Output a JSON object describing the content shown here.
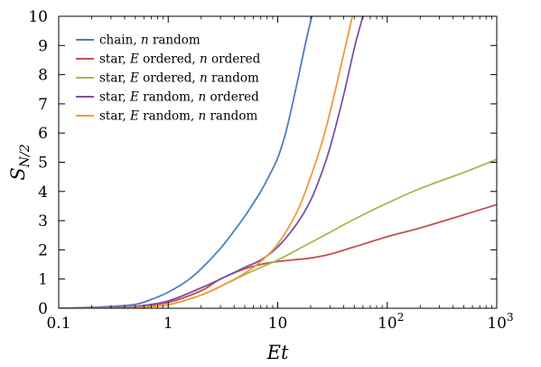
{
  "chart_data": {
    "type": "line",
    "xscale": "log",
    "xlabel": "Et",
    "ylabel": "S_{N/2}",
    "ylabel_main": "S",
    "ylabel_sub": "N/2",
    "xlim": [
      0.1,
      1000
    ],
    "ylim": [
      0,
      10
    ],
    "x_ticks": [
      {
        "value": 0.1,
        "label": "0.1"
      },
      {
        "value": 1,
        "label": "1"
      },
      {
        "value": 10,
        "label": "10"
      },
      {
        "value": 100,
        "label": "10",
        "exponent": "2"
      },
      {
        "value": 1000,
        "label": "10",
        "exponent": "3"
      }
    ],
    "y_ticks": [
      0,
      1,
      2,
      3,
      4,
      5,
      6,
      7,
      8,
      9,
      10
    ],
    "grid": false,
    "legend_position": "top-left",
    "series": [
      {
        "name": "chain, n random",
        "legend": [
          "chain, ",
          "n",
          " random"
        ],
        "color": "#4a7fc1",
        "x": [
          0.1,
          0.2,
          0.3,
          0.5,
          0.7,
          1,
          1.5,
          2,
          3,
          4,
          5,
          6,
          7,
          8,
          10,
          12,
          15,
          18,
          20.5
        ],
        "y": [
          0.0,
          0.03,
          0.06,
          0.13,
          0.3,
          0.55,
          0.95,
          1.35,
          2.05,
          2.65,
          3.15,
          3.6,
          4.0,
          4.4,
          5.15,
          6.1,
          7.7,
          9.1,
          10.0
        ]
      },
      {
        "name": "star, E ordered, n ordered",
        "legend": [
          "star, ",
          "E",
          " ordered, ",
          "n",
          " ordered"
        ],
        "color": "#c44f4f",
        "x": [
          0.1,
          0.3,
          0.5,
          1,
          2,
          3,
          5,
          7,
          10,
          15,
          20,
          30,
          50,
          100,
          200,
          500,
          1000
        ],
        "y": [
          0.0,
          0.02,
          0.05,
          0.2,
          0.6,
          1.0,
          1.35,
          1.5,
          1.6,
          1.67,
          1.72,
          1.85,
          2.1,
          2.45,
          2.75,
          3.2,
          3.55
        ]
      },
      {
        "name": "star, E ordered, n random",
        "legend": [
          "star, ",
          "E",
          " ordered, ",
          "n",
          " random"
        ],
        "color": "#9bbf4f",
        "x": [
          0.1,
          0.3,
          0.5,
          1,
          2,
          3,
          5,
          7,
          10,
          15,
          20,
          30,
          50,
          100,
          200,
          500,
          1000
        ],
        "y": [
          0.0,
          0.01,
          0.03,
          0.12,
          0.45,
          0.75,
          1.15,
          1.4,
          1.65,
          2.0,
          2.25,
          2.6,
          3.05,
          3.6,
          4.1,
          4.65,
          5.1
        ]
      },
      {
        "name": "star, E random, n ordered",
        "legend": [
          "star, ",
          "E",
          " random, ",
          "n",
          " ordered"
        ],
        "color": "#7b52a3",
        "x": [
          0.1,
          0.3,
          0.5,
          1,
          2,
          3,
          5,
          7,
          10,
          15,
          20,
          25,
          30,
          40,
          50,
          60
        ],
        "y": [
          0.0,
          0.02,
          0.06,
          0.25,
          0.7,
          1.0,
          1.4,
          1.65,
          2.1,
          2.9,
          3.7,
          4.6,
          5.5,
          7.3,
          8.9,
          10.0
        ]
      },
      {
        "name": "star, E random, n random",
        "legend": [
          "star, ",
          "E",
          " random, ",
          "n",
          " random"
        ],
        "color": "#ef9a3e",
        "x": [
          0.1,
          0.3,
          0.5,
          1,
          2,
          3,
          5,
          7,
          10,
          15,
          20,
          25,
          30,
          40,
          48
        ],
        "y": [
          0.0,
          0.01,
          0.03,
          0.12,
          0.45,
          0.75,
          1.2,
          1.6,
          2.2,
          3.3,
          4.5,
          5.6,
          6.7,
          8.7,
          10.0
        ]
      }
    ]
  }
}
